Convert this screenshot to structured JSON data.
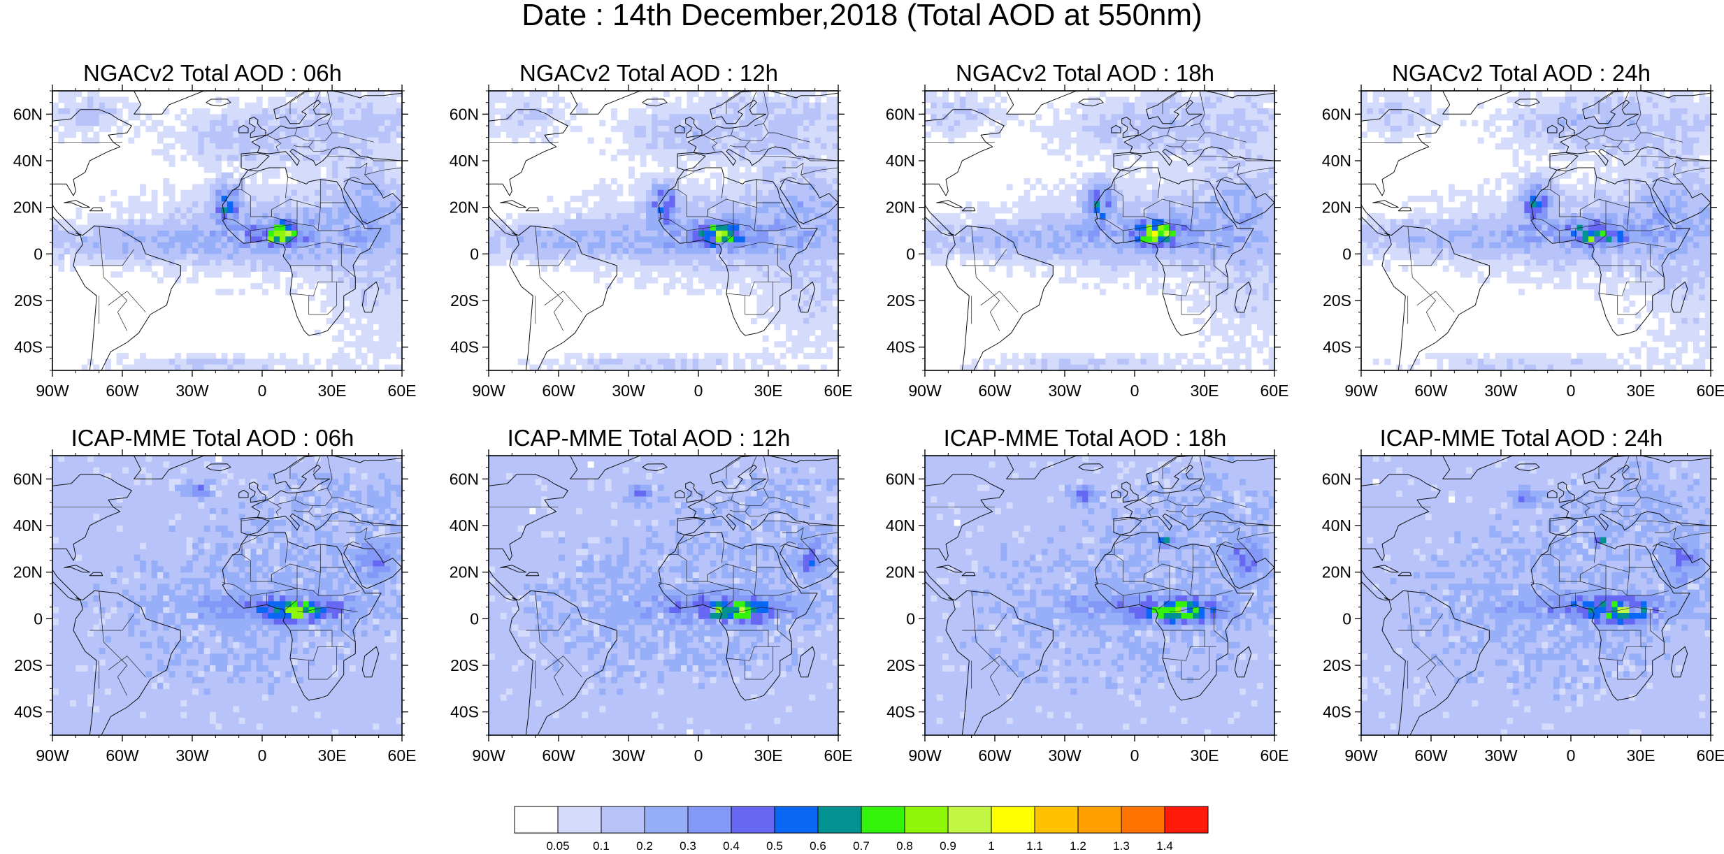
{
  "title": "Date : 14th December,2018 (Total AOD at 550nm)",
  "map_extent": {
    "lon": [
      -90,
      60
    ],
    "lat": [
      -50,
      70
    ]
  },
  "lat_ticks": [
    {
      "value": 60,
      "label": "60N"
    },
    {
      "value": 40,
      "label": "40N"
    },
    {
      "value": 20,
      "label": "20N"
    },
    {
      "value": 0,
      "label": "0"
    },
    {
      "value": -20,
      "label": "20S"
    },
    {
      "value": -40,
      "label": "40S"
    }
  ],
  "lon_ticks": [
    {
      "value": -90,
      "label": "90W"
    },
    {
      "value": -60,
      "label": "60W"
    },
    {
      "value": -30,
      "label": "30W"
    },
    {
      "value": 0,
      "label": "0"
    },
    {
      "value": 30,
      "label": "30E"
    },
    {
      "value": 60,
      "label": "60E"
    }
  ],
  "panels": [
    {
      "id": "ngac-06",
      "title": "NGACv2 Total AOD : 06h",
      "model": "ngac",
      "row": 0,
      "col": 0
    },
    {
      "id": "ngac-12",
      "title": "NGACv2 Total AOD : 12h",
      "model": "ngac",
      "row": 0,
      "col": 1
    },
    {
      "id": "ngac-18",
      "title": "NGACv2 Total AOD : 18h",
      "model": "ngac",
      "row": 0,
      "col": 2
    },
    {
      "id": "ngac-24",
      "title": "NGACv2 Total AOD : 24h",
      "model": "ngac",
      "row": 0,
      "col": 3
    },
    {
      "id": "icap-06",
      "title": "ICAP-MME Total AOD : 06h",
      "model": "icap",
      "row": 1,
      "col": 0
    },
    {
      "id": "icap-12",
      "title": "ICAP-MME Total AOD : 12h",
      "model": "icap",
      "row": 1,
      "col": 1
    },
    {
      "id": "icap-18",
      "title": "ICAP-MME Total AOD : 18h",
      "model": "icap",
      "row": 1,
      "col": 2
    },
    {
      "id": "icap-24",
      "title": "ICAP-MME Total AOD : 24h",
      "model": "icap",
      "row": 1,
      "col": 3
    }
  ],
  "colorbar": {
    "colors": [
      "#ffffff",
      "#d5dcfb",
      "#b7c3f9",
      "#97aff8",
      "#8498f7",
      "#6667f2",
      "#0a66f4",
      "#039292",
      "#33f30b",
      "#8ff607",
      "#c2f843",
      "#ffff00",
      "#ffc200",
      "#ffa000",
      "#ff7400",
      "#ff1a0a"
    ],
    "labels": [
      "0.05",
      "0.1",
      "0.2",
      "0.3",
      "0.4",
      "0.5",
      "0.6",
      "0.7",
      "0.8",
      "0.9",
      "1",
      "1.1",
      "1.2",
      "1.3",
      "1.4"
    ]
  }
}
